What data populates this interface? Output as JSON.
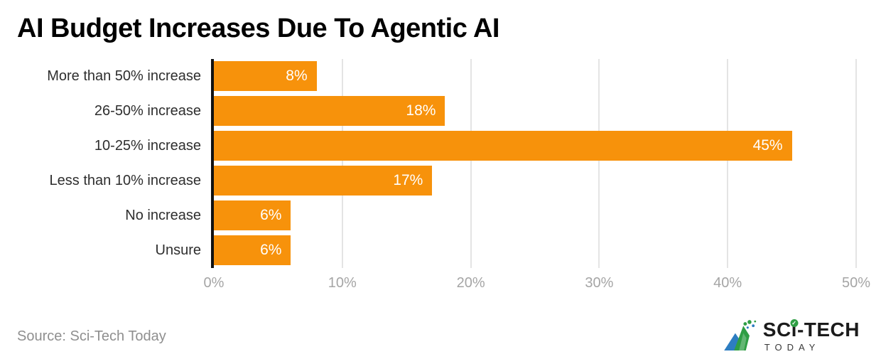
{
  "title": "AI Budget Increases Due To Agentic AI",
  "chart_data": {
    "type": "bar",
    "orientation": "horizontal",
    "title": "AI Budget Increases Due To Agentic AI",
    "categories": [
      "More than 50% increase",
      "26-50% increase",
      "10-25% increase",
      "Less than 10% increase",
      "No increase",
      "Unsure"
    ],
    "values": [
      8,
      18,
      45,
      17,
      6,
      6
    ],
    "value_labels": [
      "8%",
      "18%",
      "45%",
      "17%",
      "6%",
      "6%"
    ],
    "x_ticks": [
      "0%",
      "10%",
      "20%",
      "30%",
      "40%",
      "50%"
    ],
    "xlim": [
      0,
      50
    ],
    "grid": true,
    "legend": false,
    "bar_color": "#F7920B",
    "value_label_color": "#FFFFFF"
  },
  "footer": {
    "source": "Source: Sci-Tech Today",
    "logo": {
      "line1_pre": "SC",
      "line1_i": "ı",
      "line1_post": "-TECH",
      "line2": "TODAY",
      "check": "✓"
    }
  },
  "colors": {
    "title": "#000000",
    "bar": "#F7920B",
    "valtext": "#FFFFFF",
    "axis": "#111111",
    "grid": "#E4E4E4",
    "tick": "#A5A5A5",
    "cat": "#2E2E2E",
    "source": "#8F8F8F",
    "logotext": "#1B1B1B",
    "logo-blue": "#2D7DC1",
    "logo-green": "#2F9E44"
  }
}
